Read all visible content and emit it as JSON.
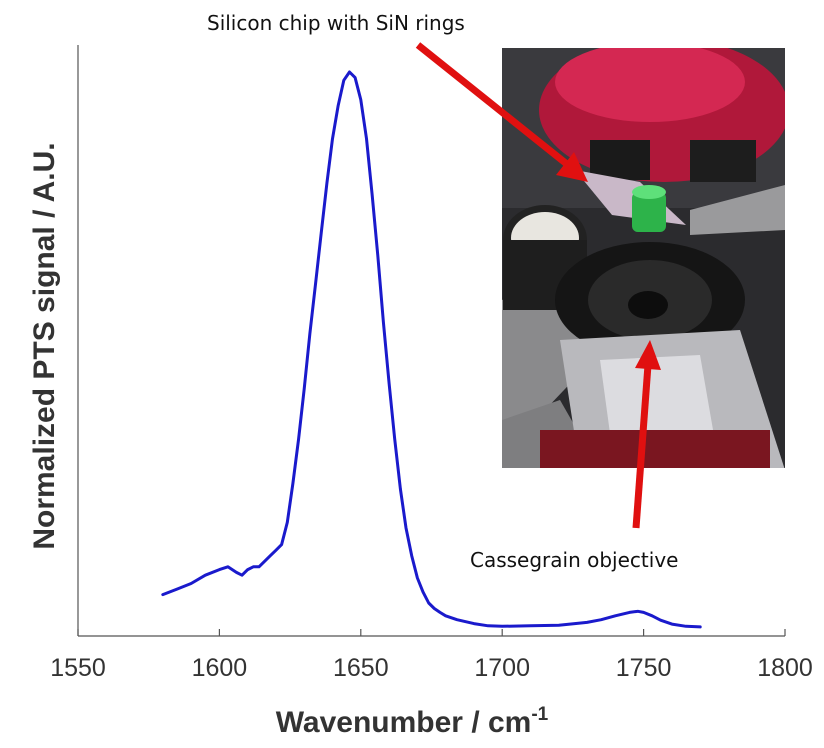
{
  "chart_data": {
    "type": "line",
    "xlabel": "Wavenumber / cm",
    "xlabel_superscript": "-1",
    "ylabel": "Normalized PTS signal / A.U.",
    "xlim": [
      1550,
      1800
    ],
    "ylim": [
      0,
      1
    ],
    "xticks": [
      "1550",
      "1600",
      "1650",
      "1700",
      "1750",
      "1800"
    ],
    "grid": false,
    "line_color": "#1a1acc",
    "series": [
      {
        "x": [
          1580,
          1585,
          1590,
          1595,
          1600,
          1603,
          1606,
          1608,
          1610,
          1612,
          1614,
          1616,
          1618,
          1620,
          1622,
          1624,
          1626,
          1628,
          1630,
          1632,
          1634,
          1636,
          1638,
          1640,
          1642,
          1644,
          1646,
          1648,
          1650,
          1652,
          1654,
          1656,
          1658,
          1660,
          1662,
          1664,
          1666,
          1668,
          1670,
          1672,
          1674,
          1676,
          1678,
          1680,
          1684,
          1690,
          1695,
          1700,
          1710,
          1720,
          1730,
          1735,
          1740,
          1745,
          1748,
          1750,
          1753,
          1756,
          1760,
          1765,
          1770
        ],
        "y": [
          0.06,
          0.07,
          0.08,
          0.095,
          0.105,
          0.11,
          0.1,
          0.095,
          0.105,
          0.11,
          0.11,
          0.12,
          0.13,
          0.14,
          0.15,
          0.19,
          0.26,
          0.34,
          0.43,
          0.53,
          0.62,
          0.71,
          0.8,
          0.88,
          0.94,
          0.985,
          1.0,
          0.99,
          0.95,
          0.88,
          0.78,
          0.67,
          0.55,
          0.44,
          0.34,
          0.25,
          0.18,
          0.13,
          0.09,
          0.065,
          0.045,
          0.035,
          0.028,
          0.022,
          0.015,
          0.008,
          0.004,
          0.003,
          0.004,
          0.005,
          0.01,
          0.015,
          0.022,
          0.028,
          0.03,
          0.028,
          0.022,
          0.014,
          0.007,
          0.003,
          0.002
        ]
      }
    ],
    "inset": {
      "annotations": [
        "Silicon chip with SiN rings",
        "Cassegrain objective"
      ],
      "arrow_color": "#e01010"
    }
  }
}
